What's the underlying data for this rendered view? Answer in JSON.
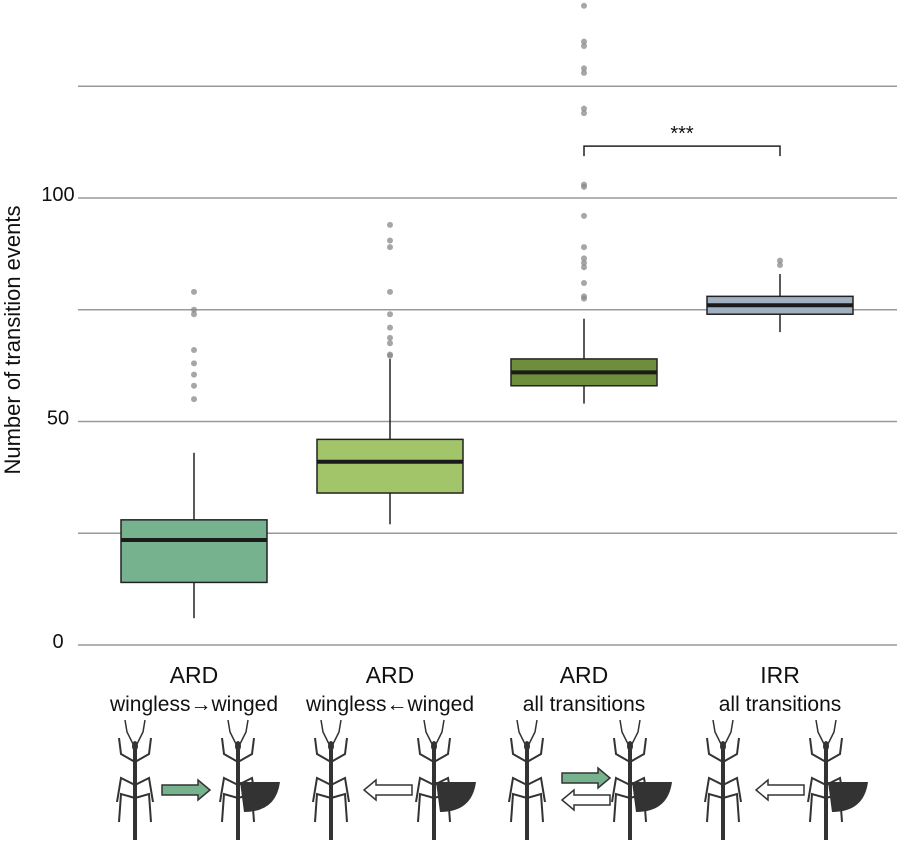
{
  "chart_data": {
    "type": "box",
    "y_label": "Number of transition events",
    "categories": [
      "ARD",
      "ARD",
      "ARD",
      "IRR"
    ],
    "category_sublabels": [
      "wingless→winged",
      "wingless←winged",
      "all transitions",
      "all transitions"
    ],
    "colors": [
      "#77b28f",
      "#a3c56a",
      "#6e8e3b",
      "#9fb1c1"
    ],
    "boxes": [
      {
        "whisker_low": 6,
        "q1": 14,
        "median": 23.5,
        "q3": 28,
        "whisker_high": 43,
        "outliers": [
          79,
          75,
          74,
          66,
          63,
          60.5,
          58,
          55
        ]
      },
      {
        "whisker_low": 27,
        "q1": 34,
        "median": 41,
        "q3": 46,
        "whisker_high": 64,
        "outliers": [
          94,
          90.5,
          89,
          79,
          74,
          71,
          68.7,
          67.5,
          65,
          64.7
        ]
      },
      {
        "whisker_low": 54,
        "q1": 58,
        "median": 61,
        "q3": 64,
        "whisker_high": 73,
        "outliers": [
          143,
          135,
          134,
          129,
          128,
          120,
          119,
          103,
          102.5,
          96,
          89,
          86.5,
          85.5,
          84.5,
          81,
          78,
          77.5
        ]
      },
      {
        "whisker_low": 70,
        "q1": 74,
        "median": 76,
        "q3": 78,
        "whisker_high": 83,
        "outliers": [
          86,
          85
        ]
      }
    ],
    "significance": {
      "from": 2,
      "to": 3,
      "y": 111.6,
      "label": "***"
    },
    "ylim": [
      0,
      144.3
    ],
    "yticks": [
      0,
      50,
      100
    ],
    "minor_yticks": [
      25,
      75,
      125
    ],
    "grid": true
  }
}
